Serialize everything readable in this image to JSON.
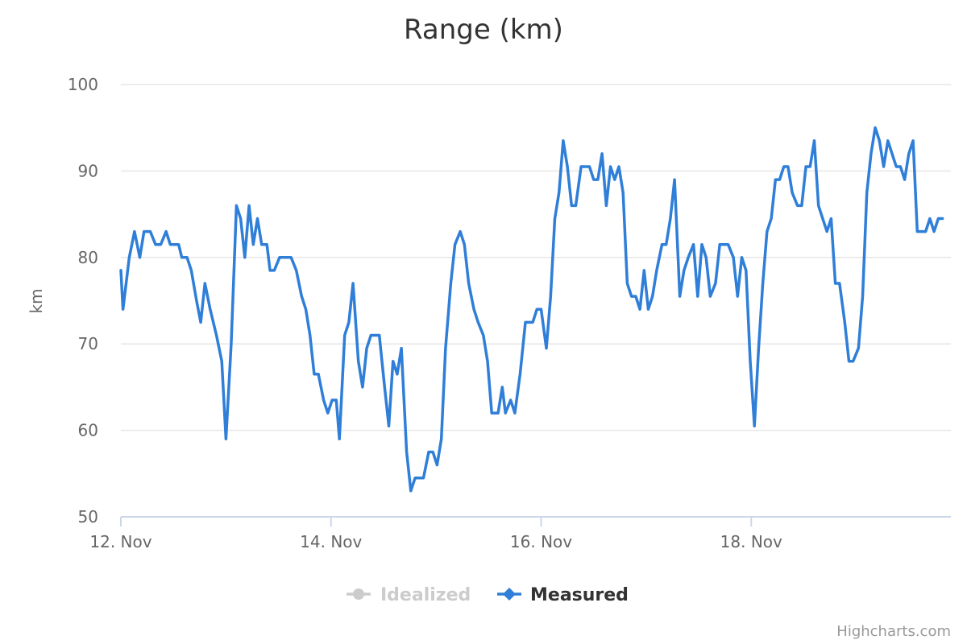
{
  "chart_data": {
    "type": "line",
    "title": "Range (km)",
    "xlabel": "",
    "ylabel": "km",
    "ylim": [
      50,
      100
    ],
    "yticks": [
      50,
      60,
      70,
      80,
      90,
      100
    ],
    "xticks": [
      {
        "x": 0,
        "label": "12. Nov"
      },
      {
        "x": 2,
        "label": "14. Nov"
      },
      {
        "x": 4,
        "label": "16. Nov"
      },
      {
        "x": 6,
        "label": "18. Nov"
      }
    ],
    "xlim": [
      0,
      7.9
    ],
    "grid": true,
    "legend_position": "bottom-center",
    "series": [
      {
        "name": "Idealized",
        "visible": false,
        "color": "#cccccc",
        "values": []
      },
      {
        "name": "Measured",
        "visible": true,
        "color": "#2f7ed8",
        "values": [
          [
            0.0,
            78.5
          ],
          [
            0.02,
            74
          ],
          [
            0.08,
            80
          ],
          [
            0.13,
            83
          ],
          [
            0.18,
            80
          ],
          [
            0.22,
            83
          ],
          [
            0.28,
            83
          ],
          [
            0.33,
            81.5
          ],
          [
            0.38,
            81.5
          ],
          [
            0.43,
            83
          ],
          [
            0.47,
            81.5
          ],
          [
            0.55,
            81.5
          ],
          [
            0.58,
            80
          ],
          [
            0.63,
            80
          ],
          [
            0.67,
            78.5
          ],
          [
            0.72,
            75
          ],
          [
            0.76,
            72.5
          ],
          [
            0.8,
            77
          ],
          [
            0.85,
            74
          ],
          [
            0.91,
            71
          ],
          [
            0.96,
            68
          ],
          [
            1.0,
            59
          ],
          [
            1.05,
            70
          ],
          [
            1.1,
            86
          ],
          [
            1.14,
            84.5
          ],
          [
            1.18,
            80
          ],
          [
            1.22,
            86
          ],
          [
            1.26,
            81.5
          ],
          [
            1.3,
            84.5
          ],
          [
            1.34,
            81.5
          ],
          [
            1.39,
            81.5
          ],
          [
            1.42,
            78.5
          ],
          [
            1.46,
            78.5
          ],
          [
            1.51,
            80
          ],
          [
            1.55,
            80
          ],
          [
            1.62,
            80
          ],
          [
            1.67,
            78.5
          ],
          [
            1.72,
            75.5
          ],
          [
            1.76,
            74
          ],
          [
            1.8,
            71
          ],
          [
            1.84,
            66.5
          ],
          [
            1.88,
            66.5
          ],
          [
            1.93,
            63.5
          ],
          [
            1.97,
            62
          ],
          [
            2.01,
            63.5
          ],
          [
            2.05,
            63.5
          ],
          [
            2.08,
            59
          ],
          [
            2.13,
            71
          ],
          [
            2.17,
            72.5
          ],
          [
            2.21,
            77
          ],
          [
            2.26,
            68
          ],
          [
            2.3,
            65
          ],
          [
            2.34,
            69.5
          ],
          [
            2.38,
            71
          ],
          [
            2.46,
            71
          ],
          [
            2.51,
            65
          ],
          [
            2.55,
            60.5
          ],
          [
            2.59,
            68
          ],
          [
            2.63,
            66.5
          ],
          [
            2.67,
            69.5
          ],
          [
            2.72,
            57.5
          ],
          [
            2.76,
            53
          ],
          [
            2.8,
            54.5
          ],
          [
            2.88,
            54.5
          ],
          [
            2.93,
            57.5
          ],
          [
            2.97,
            57.5
          ],
          [
            3.01,
            56
          ],
          [
            3.05,
            59
          ],
          [
            3.09,
            69.5
          ],
          [
            3.14,
            77
          ],
          [
            3.18,
            81.5
          ],
          [
            3.23,
            83
          ],
          [
            3.27,
            81.5
          ],
          [
            3.31,
            77
          ],
          [
            3.36,
            74
          ],
          [
            3.4,
            72.5
          ],
          [
            3.45,
            71
          ],
          [
            3.49,
            68
          ],
          [
            3.53,
            62
          ],
          [
            3.59,
            62
          ],
          [
            3.63,
            65
          ],
          [
            3.66,
            62
          ],
          [
            3.71,
            63.5
          ],
          [
            3.75,
            62
          ],
          [
            3.8,
            66.5
          ],
          [
            3.85,
            72.5
          ],
          [
            3.92,
            72.5
          ],
          [
            3.96,
            74
          ],
          [
            4.0,
            74
          ],
          [
            4.05,
            69.5
          ],
          [
            4.09,
            75.5
          ],
          [
            4.13,
            84.5
          ],
          [
            4.17,
            87.5
          ],
          [
            4.21,
            93.5
          ],
          [
            4.25,
            90.5
          ],
          [
            4.29,
            86
          ],
          [
            4.33,
            86
          ],
          [
            4.38,
            90.5
          ],
          [
            4.46,
            90.5
          ],
          [
            4.5,
            89
          ],
          [
            4.54,
            89
          ],
          [
            4.58,
            92
          ],
          [
            4.62,
            86
          ],
          [
            4.66,
            90.5
          ],
          [
            4.7,
            89
          ],
          [
            4.74,
            90.5
          ],
          [
            4.78,
            87.5
          ],
          [
            4.82,
            77
          ],
          [
            4.86,
            75.5
          ],
          [
            4.9,
            75.5
          ],
          [
            4.94,
            74
          ],
          [
            4.98,
            78.5
          ],
          [
            5.02,
            74
          ],
          [
            5.06,
            75.5
          ],
          [
            5.1,
            78.5
          ],
          [
            5.15,
            81.5
          ],
          [
            5.19,
            81.5
          ],
          [
            5.23,
            84.5
          ],
          [
            5.27,
            89
          ],
          [
            5.32,
            75.5
          ],
          [
            5.36,
            78.5
          ],
          [
            5.4,
            80
          ],
          [
            5.45,
            81.5
          ],
          [
            5.49,
            75.5
          ],
          [
            5.53,
            81.5
          ],
          [
            5.57,
            80
          ],
          [
            5.61,
            75.5
          ],
          [
            5.66,
            77
          ],
          [
            5.7,
            81.5
          ],
          [
            5.78,
            81.5
          ],
          [
            5.83,
            80
          ],
          [
            5.87,
            75.5
          ],
          [
            5.91,
            80
          ],
          [
            5.95,
            78.5
          ],
          [
            5.99,
            68
          ],
          [
            6.03,
            60.5
          ],
          [
            6.07,
            69.5
          ],
          [
            6.11,
            77
          ],
          [
            6.15,
            83
          ],
          [
            6.19,
            84.5
          ],
          [
            6.23,
            89
          ],
          [
            6.27,
            89
          ],
          [
            6.31,
            90.5
          ],
          [
            6.35,
            90.5
          ],
          [
            6.39,
            87.5
          ],
          [
            6.44,
            86
          ],
          [
            6.48,
            86
          ],
          [
            6.52,
            90.5
          ],
          [
            6.56,
            90.5
          ],
          [
            6.6,
            93.5
          ],
          [
            6.64,
            86
          ],
          [
            6.68,
            84.5
          ],
          [
            6.72,
            83
          ],
          [
            6.76,
            84.5
          ],
          [
            6.8,
            77
          ],
          [
            6.84,
            77
          ],
          [
            6.89,
            72.5
          ],
          [
            6.93,
            68
          ],
          [
            6.97,
            68
          ],
          [
            7.02,
            69.5
          ],
          [
            7.06,
            75.5
          ],
          [
            7.1,
            87.5
          ],
          [
            7.14,
            92
          ],
          [
            7.18,
            95
          ],
          [
            7.22,
            93.5
          ],
          [
            7.26,
            90.5
          ],
          [
            7.3,
            93.5
          ],
          [
            7.34,
            92
          ],
          [
            7.38,
            90.5
          ],
          [
            7.42,
            90.5
          ],
          [
            7.46,
            89
          ],
          [
            7.5,
            92
          ],
          [
            7.54,
            93.5
          ],
          [
            7.58,
            83
          ],
          [
            7.62,
            83
          ],
          [
            7.66,
            83
          ],
          [
            7.7,
            84.5
          ],
          [
            7.74,
            83
          ],
          [
            7.78,
            84.5
          ],
          [
            7.82,
            84.5
          ]
        ]
      }
    ]
  },
  "credits": "Highcharts.com"
}
